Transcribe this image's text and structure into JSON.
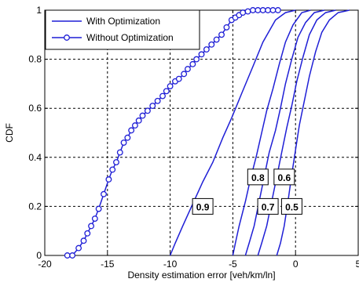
{
  "chart_data": {
    "type": "line",
    "title": "",
    "xlabel": "Density estimation error [veh/km/ln]",
    "ylabel": "CDF",
    "xlim": [
      -20,
      5
    ],
    "ylim": [
      0,
      1
    ],
    "xticks": [
      -20,
      -15,
      -10,
      -5,
      0,
      5
    ],
    "yticks": [
      0,
      0.2,
      0.4,
      0.6,
      0.8,
      1
    ],
    "xtick_labels": [
      "-20",
      "-15",
      "-10",
      "-5",
      "0",
      "5"
    ],
    "ytick_labels": [
      "0",
      "0.2",
      "0.4",
      "0.6",
      "0.8",
      "1"
    ],
    "grid": "dotted",
    "legend_position": "top-left",
    "line_color": "#1f1fd6",
    "legend": [
      {
        "label": "With Optimization",
        "marker": "none"
      },
      {
        "label": "Without Optimization",
        "marker": "circle"
      }
    ],
    "series": [
      {
        "group": "With Optimization",
        "annotation": "0.9",
        "x": [
          -10.0,
          -9.6,
          -9.0,
          -8.2,
          -7.4,
          -6.6,
          -5.8,
          -5.1,
          -4.3,
          -3.4,
          -2.6,
          -1.6,
          -0.8,
          0.0
        ],
        "y": [
          0.0,
          0.05,
          0.12,
          0.21,
          0.3,
          0.38,
          0.48,
          0.56,
          0.66,
          0.77,
          0.87,
          0.96,
          0.99,
          1.0
        ]
      },
      {
        "group": "With Optimization",
        "annotation": "0.8",
        "x": [
          -5.0,
          -4.8,
          -4.5,
          -4.0,
          -3.6,
          -3.1,
          -2.7,
          -2.3,
          -1.8,
          -1.3,
          -0.8,
          -0.2,
          0.5,
          1.2
        ],
        "y": [
          0.0,
          0.05,
          0.12,
          0.22,
          0.31,
          0.41,
          0.5,
          0.59,
          0.68,
          0.78,
          0.87,
          0.94,
          0.99,
          1.0
        ]
      },
      {
        "group": "With Optimization",
        "annotation": "0.7",
        "x": [
          -4.0,
          -3.7,
          -3.3,
          -2.9,
          -2.5,
          -2.1,
          -1.6,
          -1.2,
          -0.8,
          -0.3,
          0.2,
          0.8,
          1.5,
          2.3
        ],
        "y": [
          0.0,
          0.05,
          0.12,
          0.22,
          0.32,
          0.42,
          0.51,
          0.6,
          0.7,
          0.8,
          0.89,
          0.95,
          0.99,
          1.0
        ]
      },
      {
        "group": "With Optimization",
        "annotation": "0.6",
        "x": [
          -3.0,
          -2.7,
          -2.3,
          -1.9,
          -1.5,
          -1.1,
          -0.7,
          -0.3,
          0.1,
          0.6,
          1.1,
          1.7,
          2.4,
          3.2
        ],
        "y": [
          0.0,
          0.05,
          0.12,
          0.22,
          0.32,
          0.42,
          0.52,
          0.61,
          0.71,
          0.81,
          0.9,
          0.96,
          0.99,
          1.0
        ]
      },
      {
        "group": "With Optimization",
        "annotation": "0.5",
        "x": [
          -1.5,
          -1.2,
          -0.9,
          -0.6,
          -0.3,
          0.0,
          0.3,
          0.7,
          1.1,
          1.6,
          2.1,
          2.7,
          3.4,
          4.3
        ],
        "y": [
          0.0,
          0.05,
          0.12,
          0.22,
          0.33,
          0.43,
          0.53,
          0.63,
          0.73,
          0.83,
          0.91,
          0.96,
          0.99,
          1.0
        ]
      },
      {
        "group": "Without Optimization",
        "marker": "circle",
        "x": [
          -18.2,
          -17.8,
          -17.3,
          -16.9,
          -16.6,
          -16.3,
          -16.0,
          -15.7,
          -15.3,
          -14.9,
          -14.6,
          -14.3,
          -14.0,
          -13.7,
          -13.4,
          -13.1,
          -12.8,
          -12.5,
          -12.2,
          -11.8,
          -11.4,
          -11.0,
          -10.6,
          -10.3,
          -10.0,
          -9.6,
          -9.3,
          -8.9,
          -8.6,
          -8.2,
          -7.9,
          -7.5,
          -7.1,
          -6.7,
          -6.3,
          -5.9,
          -5.5,
          -5.1,
          -4.8,
          -4.5,
          -4.2,
          -3.8,
          -3.4,
          -3.0,
          -2.6,
          -2.2,
          -1.8,
          -1.4
        ],
        "y": [
          0.0,
          0.0,
          0.03,
          0.06,
          0.09,
          0.12,
          0.15,
          0.19,
          0.25,
          0.31,
          0.35,
          0.38,
          0.42,
          0.46,
          0.48,
          0.51,
          0.53,
          0.55,
          0.57,
          0.59,
          0.61,
          0.63,
          0.65,
          0.67,
          0.69,
          0.71,
          0.72,
          0.74,
          0.76,
          0.78,
          0.8,
          0.82,
          0.84,
          0.86,
          0.88,
          0.9,
          0.93,
          0.96,
          0.97,
          0.98,
          0.99,
          0.995,
          1.0,
          1.0,
          1.0,
          1.0,
          1.0,
          1.0
        ]
      }
    ],
    "annotations": [
      {
        "text": "0.9",
        "x": -7.4,
        "y": 0.2
      },
      {
        "text": "0.8",
        "x": -3.0,
        "y": 0.32
      },
      {
        "text": "0.6",
        "x": -0.9,
        "y": 0.32
      },
      {
        "text": "0.7",
        "x": -2.2,
        "y": 0.2
      },
      {
        "text": "0.5",
        "x": -0.3,
        "y": 0.2
      }
    ]
  }
}
